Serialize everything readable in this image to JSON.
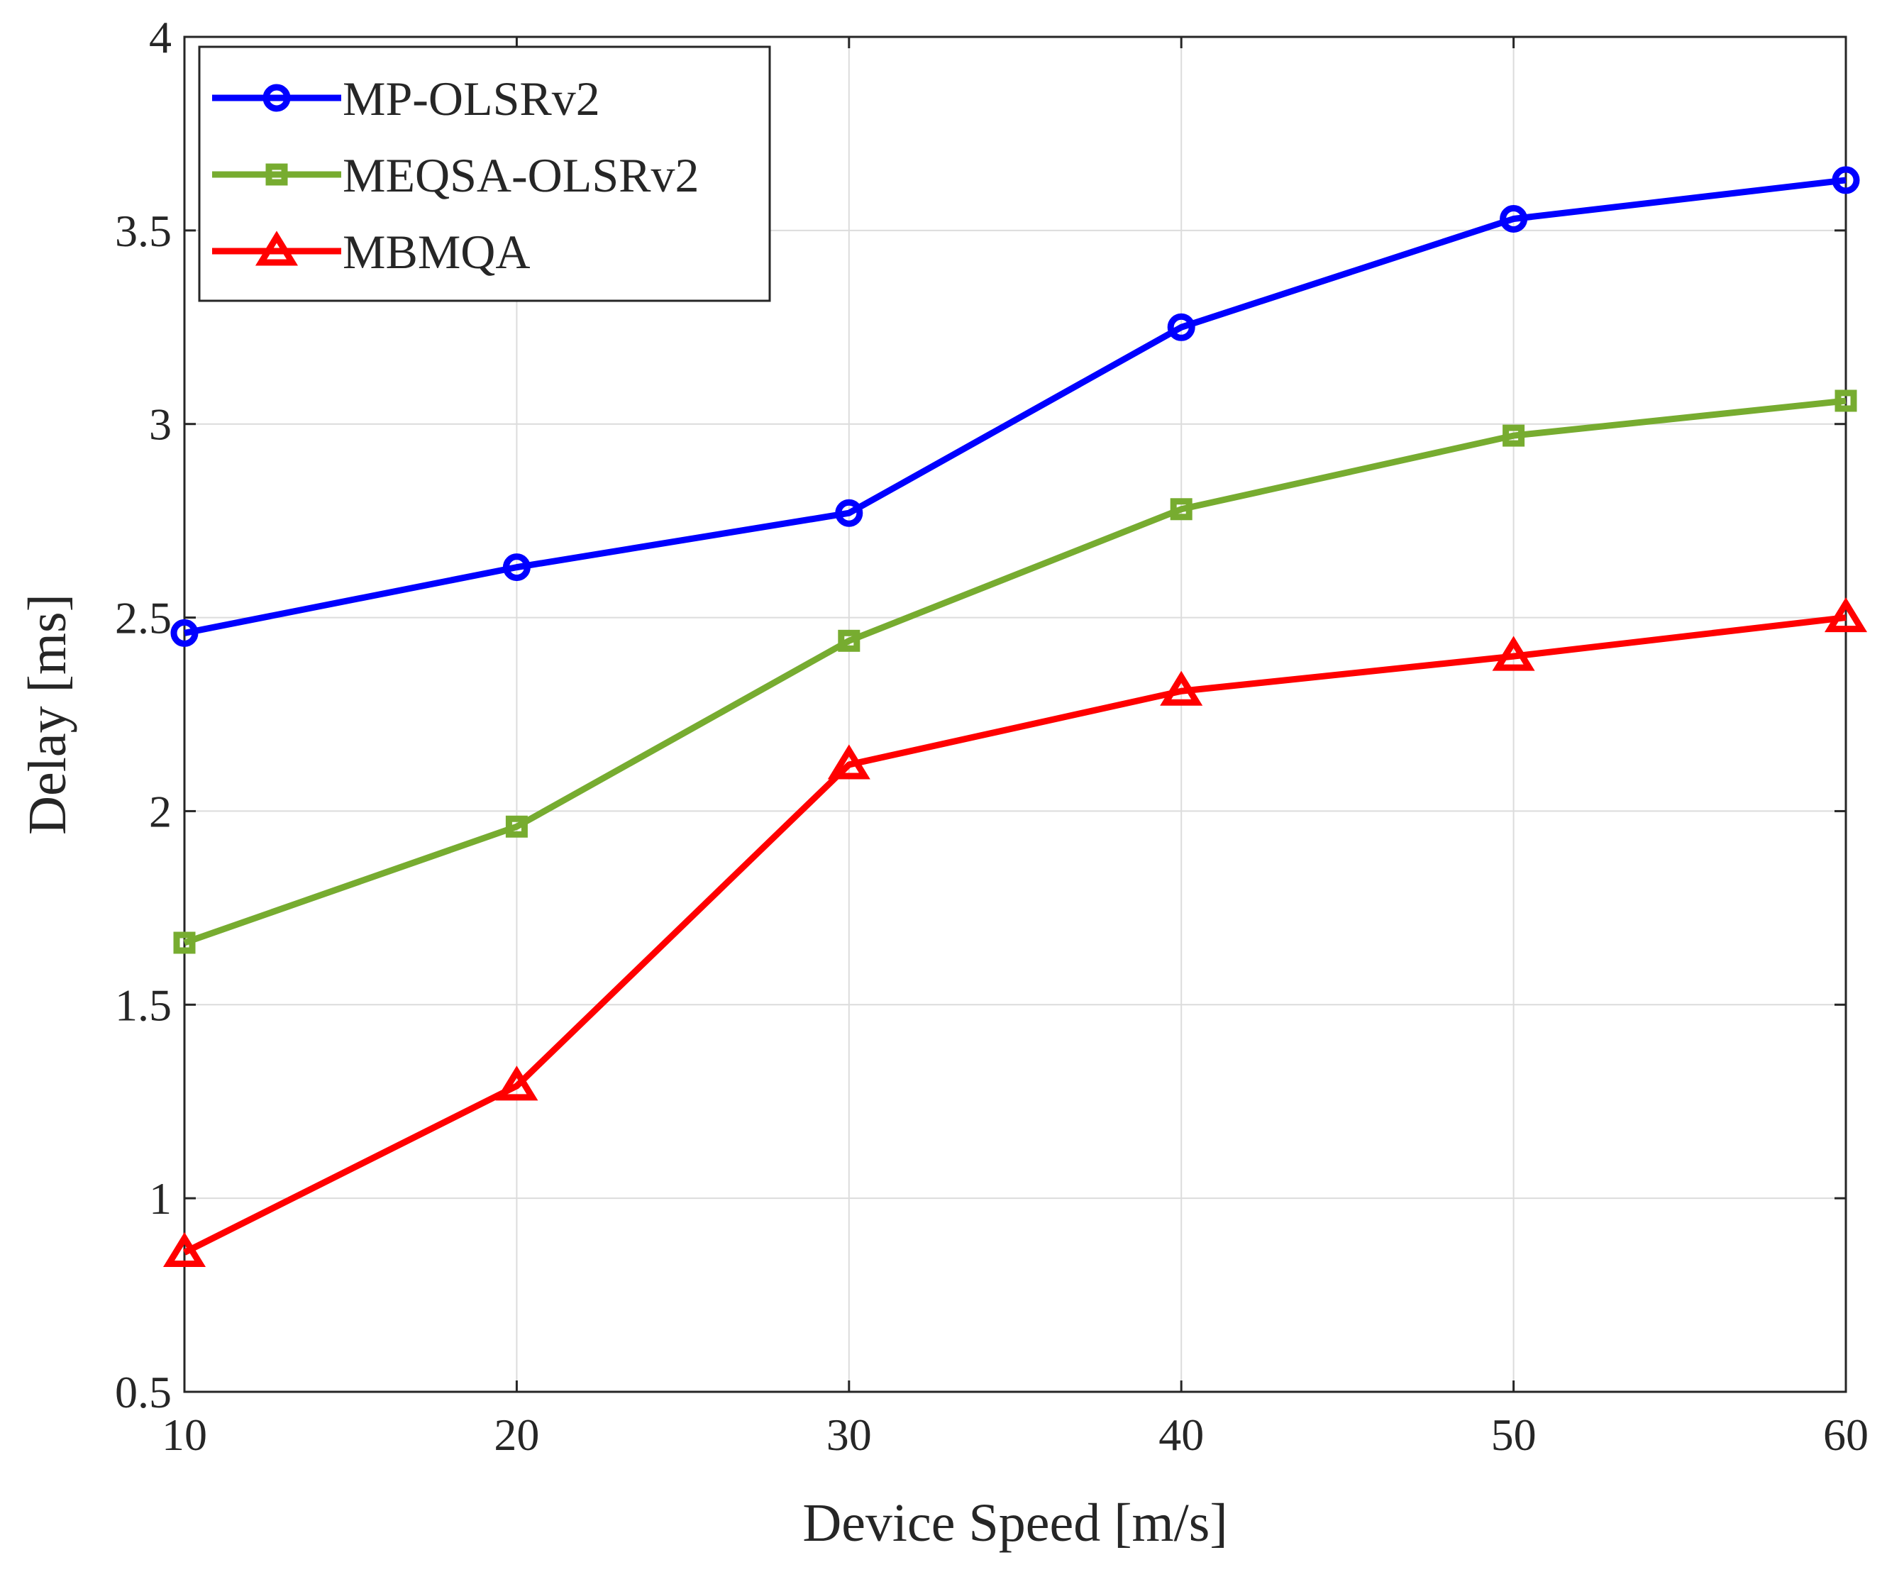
{
  "chart_data": {
    "type": "line",
    "title": "",
    "xlabel": "Device Speed [m/s]",
    "ylabel": "Delay [ms]",
    "x": [
      10,
      20,
      30,
      40,
      50,
      60
    ],
    "xlim": [
      10,
      60
    ],
    "ylim": [
      0.5,
      4
    ],
    "xticks": [
      "10",
      "20",
      "30",
      "40",
      "50",
      "60"
    ],
    "yticks": [
      "0.5",
      "1",
      "1.5",
      "2",
      "2.5",
      "3",
      "3.5",
      "4"
    ],
    "grid": true,
    "legend_position": "top-left",
    "series": [
      {
        "name": "MP-OLSRv2",
        "color": "#0000ff",
        "marker": "circle",
        "values": [
          2.46,
          2.63,
          2.77,
          3.25,
          3.53,
          3.63
        ]
      },
      {
        "name": "MEQSA-OLSRv2",
        "color": "#77ac30",
        "marker": "square",
        "values": [
          1.66,
          1.96,
          2.44,
          2.78,
          2.97,
          3.06
        ]
      },
      {
        "name": "MBMQA",
        "color": "#ff0000",
        "marker": "triangle",
        "values": [
          0.86,
          1.29,
          2.12,
          2.31,
          2.4,
          2.5
        ]
      }
    ]
  }
}
